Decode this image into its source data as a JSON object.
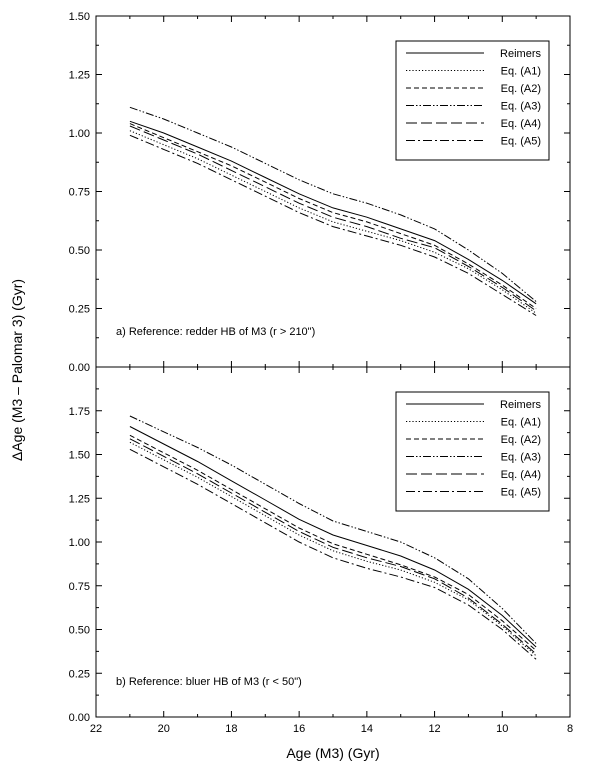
{
  "figure": {
    "ylabel": "ΔAge (M3 – Palomar 3) (Gyr)",
    "xlabel": "Age (M3) (Gyr)"
  },
  "chart_data": [
    {
      "type": "line",
      "panel": "a",
      "annotation": "a) Reference: redder HB of M3 (r > 210\")",
      "xlim": [
        22,
        8
      ],
      "x_reversed": true,
      "ylim": [
        0,
        1.5
      ],
      "xticks": [
        "22",
        "20",
        "18",
        "16",
        "14",
        "12",
        "10",
        "8"
      ],
      "yticks": [
        "0.00",
        "0.25",
        "0.50",
        "0.75",
        "1.00",
        "1.25",
        "1.50"
      ],
      "legend_position": "top-right",
      "x": [
        21,
        20,
        19,
        18,
        17,
        16,
        15,
        14,
        13,
        12,
        11,
        10,
        9
      ],
      "series": [
        {
          "name": "Reimers",
          "dash": "solid",
          "values": [
            1.05,
            1.0,
            0.94,
            0.88,
            0.81,
            0.74,
            0.68,
            0.64,
            0.59,
            0.54,
            0.46,
            0.37,
            0.27
          ]
        },
        {
          "name": "Eq. (A1)",
          "dash": "dotted",
          "values": [
            1.01,
            0.95,
            0.89,
            0.82,
            0.75,
            0.68,
            0.62,
            0.58,
            0.54,
            0.49,
            0.42,
            0.33,
            0.23
          ]
        },
        {
          "name": "Eq. (A2)",
          "dash": "dashed",
          "values": [
            1.04,
            0.98,
            0.92,
            0.86,
            0.79,
            0.72,
            0.66,
            0.62,
            0.57,
            0.52,
            0.44,
            0.35,
            0.25
          ]
        },
        {
          "name": "Eq. (A3)",
          "dash": "dashdotdot",
          "values": [
            1.11,
            1.06,
            1.0,
            0.94,
            0.87,
            0.8,
            0.74,
            0.7,
            0.65,
            0.59,
            0.5,
            0.4,
            0.28
          ]
        },
        {
          "name": "Eq. (A4)",
          "dash": "longdash",
          "values": [
            1.03,
            0.97,
            0.91,
            0.84,
            0.77,
            0.7,
            0.64,
            0.6,
            0.55,
            0.51,
            0.43,
            0.34,
            0.24
          ]
        },
        {
          "name": "Eq. (A5)",
          "dash": "dashdot",
          "values": [
            0.99,
            0.93,
            0.87,
            0.8,
            0.73,
            0.66,
            0.6,
            0.56,
            0.52,
            0.47,
            0.4,
            0.31,
            0.22
          ]
        }
      ]
    },
    {
      "type": "line",
      "panel": "b",
      "annotation": "b) Reference: bluer HB of M3 (r < 50\")",
      "xlim": [
        22,
        8
      ],
      "x_reversed": true,
      "ylim": [
        0,
        2.0
      ],
      "xticks": [
        "22",
        "20",
        "18",
        "16",
        "14",
        "12",
        "10",
        "8"
      ],
      "yticks": [
        "0.00",
        "0.25",
        "0.50",
        "0.75",
        "1.00",
        "1.25",
        "1.50",
        "1.75"
      ],
      "legend_position": "top-right",
      "x": [
        21,
        20,
        19,
        18,
        17,
        16,
        15,
        14,
        13,
        12,
        11,
        10,
        9
      ],
      "series": [
        {
          "name": "Reimers",
          "dash": "solid",
          "values": [
            1.66,
            1.56,
            1.46,
            1.35,
            1.24,
            1.13,
            1.04,
            0.98,
            0.92,
            0.84,
            0.73,
            0.58,
            0.4
          ]
        },
        {
          "name": "Eq. (A1)",
          "dash": "dotted",
          "values": [
            1.57,
            1.47,
            1.37,
            1.26,
            1.15,
            1.04,
            0.95,
            0.89,
            0.84,
            0.77,
            0.67,
            0.52,
            0.35
          ]
        },
        {
          "name": "Eq. (A2)",
          "dash": "dashed",
          "values": [
            1.61,
            1.51,
            1.41,
            1.3,
            1.19,
            1.08,
            0.99,
            0.93,
            0.87,
            0.8,
            0.7,
            0.55,
            0.38
          ]
        },
        {
          "name": "Eq. (A3)",
          "dash": "dashdotdot",
          "values": [
            1.72,
            1.63,
            1.54,
            1.44,
            1.33,
            1.22,
            1.12,
            1.06,
            1.0,
            0.91,
            0.79,
            0.62,
            0.42
          ]
        },
        {
          "name": "Eq. (A4)",
          "dash": "longdash",
          "values": [
            1.59,
            1.49,
            1.39,
            1.28,
            1.17,
            1.06,
            0.97,
            0.91,
            0.86,
            0.79,
            0.68,
            0.53,
            0.36
          ]
        },
        {
          "name": "Eq. (A5)",
          "dash": "dashdot",
          "values": [
            1.53,
            1.43,
            1.33,
            1.22,
            1.11,
            1.0,
            0.91,
            0.85,
            0.8,
            0.74,
            0.64,
            0.5,
            0.33
          ]
        }
      ]
    }
  ]
}
